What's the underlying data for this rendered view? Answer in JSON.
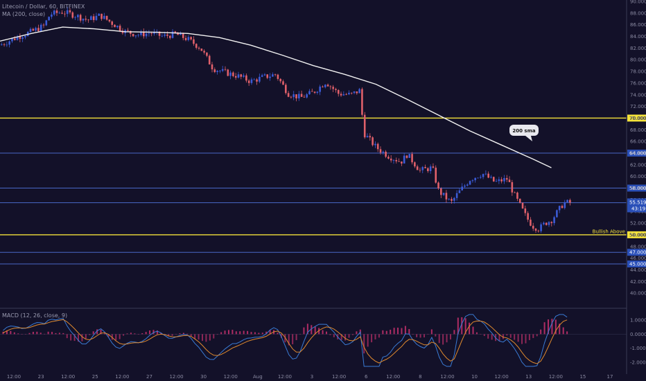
{
  "header": {
    "symbol": "Litecoin / Dollar, 60, BITFINEX",
    "ma_label": "MA (200, close)",
    "macd_label": "MACD (12, 26, close, 9)"
  },
  "colors": {
    "background": "#131129",
    "bull": "#3b5bd6",
    "bear": "#e0606a",
    "ma": "#f2f2f2",
    "yellow_line": "#f5e33a",
    "blue_line": "#4a68c8",
    "macd_line": "#3a7bd5",
    "signal_line": "#e08a2e",
    "hist_pos": "#c0306a",
    "hist_neg": "#c0306a"
  },
  "chart_data": [
    {
      "type": "candlestick",
      "ylim": [
        38,
        90
      ],
      "y_ticks": [
        "90.000",
        "88.000",
        "86.000",
        "84.000",
        "82.000",
        "80.000",
        "78.000",
        "76.000",
        "74.000",
        "72.000",
        "70.000",
        "68.000",
        "66.000",
        "64.000",
        "62.000",
        "60.000",
        "58.000",
        "56.000",
        "54.000",
        "52.000",
        "50.000",
        "48.000",
        "46.000",
        "44.000",
        "42.000",
        "40.000"
      ],
      "x_ticks": [
        "12:00",
        "23",
        "12:00",
        "25",
        "12:00",
        "27",
        "12:00",
        "30",
        "12:00",
        "Aug",
        "12:00",
        "3",
        "12:00",
        "6",
        "12:00",
        "8",
        "12:00",
        "10",
        "12:00",
        "13",
        "12:00",
        "15",
        "17"
      ],
      "price_path": [
        [
          0,
          82.5
        ],
        [
          3,
          84.0
        ],
        [
          5,
          84.8
        ],
        [
          6,
          85.3
        ],
        [
          7,
          85.8
        ],
        [
          8,
          87.8
        ],
        [
          10,
          88.2
        ],
        [
          12,
          87.6
        ],
        [
          14,
          86.8
        ],
        [
          16,
          87.6
        ],
        [
          18,
          86.2
        ],
        [
          20,
          84.8
        ],
        [
          22,
          84.3
        ],
        [
          24,
          84.6
        ],
        [
          26,
          84.0
        ],
        [
          28,
          84.4
        ],
        [
          30,
          83.5
        ],
        [
          32,
          82.0
        ],
        [
          34,
          78.5
        ],
        [
          36,
          77.8
        ],
        [
          38,
          77.2
        ],
        [
          40,
          76.3
        ],
        [
          42,
          77.0
        ],
        [
          44,
          77.5
        ],
        [
          46,
          74.2
        ],
        [
          48,
          73.5
        ],
        [
          50,
          74.4
        ],
        [
          52,
          76.2
        ],
        [
          54,
          74.2
        ],
        [
          56,
          74.0
        ],
        [
          57.5,
          74.8
        ],
        [
          58,
          67.5
        ],
        [
          60,
          65.0
        ],
        [
          62,
          63.5
        ],
        [
          64,
          62.5
        ],
        [
          65,
          63.8
        ],
        [
          67,
          61.0
        ],
        [
          69,
          61.5
        ],
        [
          70,
          57.5
        ],
        [
          72,
          55.5
        ],
        [
          73,
          57.0
        ],
        [
          75,
          59.5
        ],
        [
          77,
          60.5
        ],
        [
          79,
          59.0
        ],
        [
          81,
          59.6
        ],
        [
          82,
          57.0
        ],
        [
          84,
          53.0
        ],
        [
          85,
          51.5
        ],
        [
          86,
          51.0
        ],
        [
          87,
          52.0
        ],
        [
          88,
          52.5
        ],
        [
          89,
          54.0
        ],
        [
          90,
          55.5
        ],
        [
          91,
          55.5
        ]
      ],
      "ma200_path": [
        [
          0,
          83.2
        ],
        [
          5,
          84.5
        ],
        [
          10,
          85.6
        ],
        [
          15,
          85.3
        ],
        [
          20,
          84.8
        ],
        [
          25,
          84.7
        ],
        [
          30,
          84.5
        ],
        [
          35,
          83.8
        ],
        [
          40,
          82.5
        ],
        [
          45,
          80.8
        ],
        [
          50,
          79.0
        ],
        [
          55,
          77.5
        ],
        [
          60,
          75.8
        ],
        [
          65,
          73.2
        ],
        [
          70,
          70.5
        ],
        [
          75,
          67.8
        ],
        [
          80,
          65.4
        ],
        [
          85,
          63.0
        ],
        [
          88,
          61.5
        ]
      ],
      "hlines": [
        {
          "value": 70.0,
          "label": "70.000",
          "kind": "yellow"
        },
        {
          "value": 64.0,
          "label": "64.000",
          "kind": "blue"
        },
        {
          "value": 58.0,
          "label": "58.000",
          "kind": "blue"
        },
        {
          "value": 55.5,
          "label": "",
          "kind": "blue"
        },
        {
          "value": 50.0,
          "label": "50.000",
          "kind": "yellow"
        },
        {
          "value": 47.0,
          "label": "47.000",
          "kind": "blue"
        },
        {
          "value": 45.0,
          "label": "45.000",
          "kind": "blue"
        }
      ],
      "last_price": {
        "value": "55.519",
        "countdown": "43:19"
      },
      "annotations": {
        "ma_callout": "200 sma",
        "bullish": "Bullish Above"
      }
    },
    {
      "type": "macd",
      "ylim": [
        -2.6,
        1.6
      ],
      "y_ticks": [
        {
          "value": 1.0,
          "label": "1.0000"
        },
        {
          "value": 0.0,
          "label": "0.0000"
        },
        {
          "value": -1.0,
          "label": "-1.0000"
        },
        {
          "value": -2.0,
          "label": "-2.0000"
        }
      ]
    }
  ]
}
